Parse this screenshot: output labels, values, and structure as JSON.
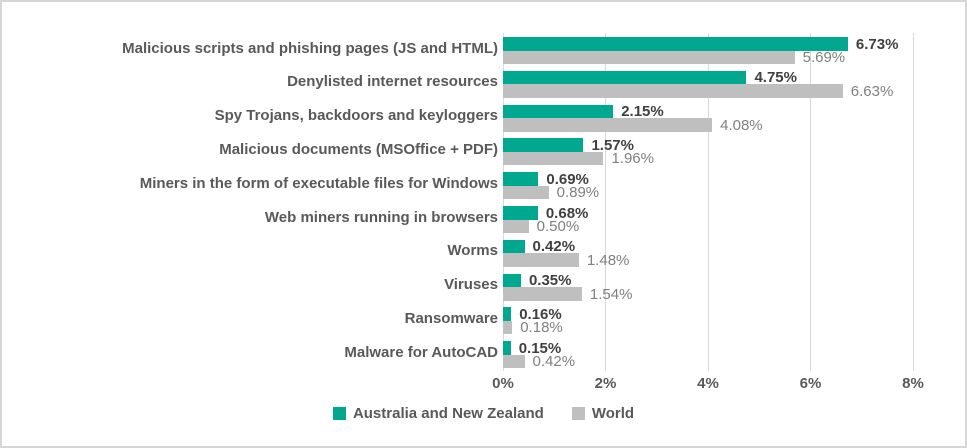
{
  "chart_data": {
    "type": "bar",
    "orientation": "horizontal",
    "title": "",
    "xlabel": "",
    "ylabel": "",
    "xlim": [
      0,
      8
    ],
    "grid": true,
    "legend_position": "bottom",
    "categories": [
      "Malicious scripts and phishing pages (JS and HTML)",
      "Denylisted internet resources",
      "Spy Trojans, backdoors and keyloggers",
      "Malicious documents (MSOffice + PDF)",
      "Miners in the form of executable files for Windows",
      "Web miners running in browsers",
      "Worms",
      "Viruses",
      "Ransomware",
      "Malware for AutoCAD"
    ],
    "series": [
      {
        "name": "Australia and New Zealand",
        "color": "#00A88F",
        "values": [
          6.73,
          4.75,
          2.15,
          1.57,
          0.69,
          0.68,
          0.42,
          0.35,
          0.16,
          0.15
        ],
        "data_labels": [
          "6.73%",
          "4.75%",
          "2.15%",
          "1.57%",
          "0.69%",
          "0.68%",
          "0.42%",
          "0.35%",
          "0.16%",
          "0.15%"
        ]
      },
      {
        "name": "World",
        "color": "#BFBFBF",
        "values": [
          5.69,
          6.63,
          4.08,
          1.96,
          0.89,
          0.5,
          1.48,
          1.54,
          0.18,
          0.42
        ],
        "data_labels": [
          "5.69%",
          "6.63%",
          "4.08%",
          "1.96%",
          "0.89%",
          "0.50%",
          "1.48%",
          "1.54%",
          "0.18%",
          "0.42%"
        ]
      }
    ],
    "x_ticks": [
      "0%",
      "2%",
      "4%",
      "6%",
      "8%"
    ]
  },
  "colors": {
    "anz_bar": "#00A88F",
    "world_bar": "#BFBFBF",
    "gridline": "#d9d9d9",
    "category_text": "#595959",
    "axis_text": "#595959",
    "anz_value_text": "#404040",
    "world_value_text": "#7f7f7f",
    "frame_border": "#d6d6d6",
    "background": "#ffffff"
  }
}
